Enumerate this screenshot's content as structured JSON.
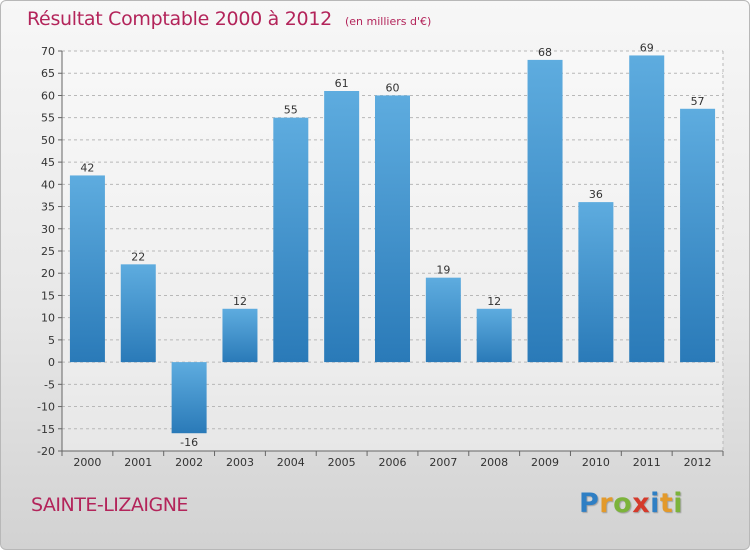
{
  "header": {
    "title": "Résultat Comptable 2000 à 2012",
    "subtitle": "(en milliers d'€)"
  },
  "footer": {
    "place": "SAINTE-LIZAIGNE"
  },
  "logo": {
    "letters": [
      "P",
      "r",
      "o",
      "x",
      "i",
      "t",
      "i"
    ],
    "colors": [
      "#2f7fc4",
      "#e39a2b",
      "#7cb33b",
      "#d43a2b",
      "#2f7fc4",
      "#e39a2b",
      "#7cb33b"
    ]
  },
  "colors": {
    "bar_dark": "#2a7ab8",
    "bar_light": "#5eacdf",
    "grid": "#b8b8b8",
    "text": "#333333"
  },
  "chart_data": {
    "type": "bar",
    "title": "Résultat Comptable 2000 à 2012",
    "subtitle": "(en milliers d'€)",
    "xlabel": "",
    "ylabel": "",
    "categories": [
      "2000",
      "2001",
      "2002",
      "2003",
      "2004",
      "2005",
      "2006",
      "2007",
      "2008",
      "2009",
      "2010",
      "2011",
      "2012"
    ],
    "values": [
      42,
      22,
      -16,
      12,
      55,
      61,
      60,
      19,
      12,
      68,
      36,
      69,
      57
    ],
    "ylim": [
      -20,
      70
    ],
    "yticks": [
      -20,
      -15,
      -10,
      -5,
      0,
      5,
      10,
      15,
      20,
      25,
      30,
      35,
      40,
      45,
      50,
      55,
      60,
      65,
      70
    ],
    "grid": true,
    "legend": "none"
  }
}
